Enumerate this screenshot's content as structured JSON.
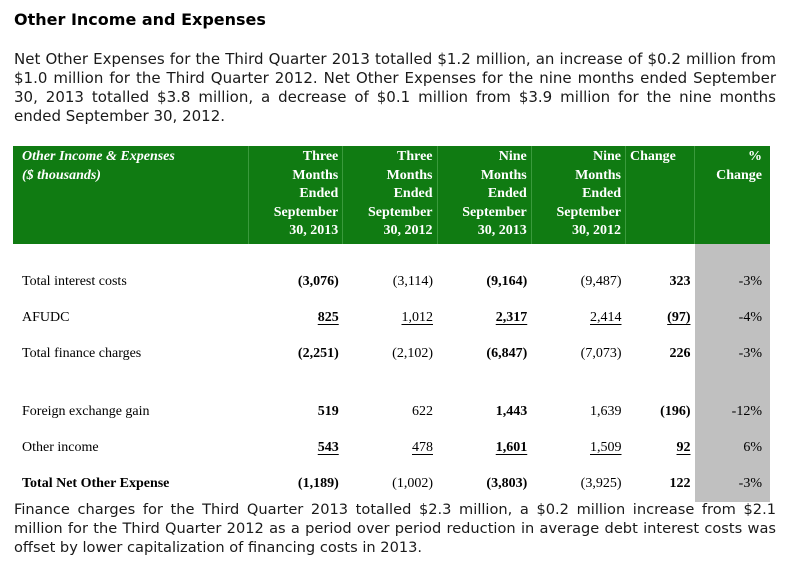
{
  "section_title": "Other Income and Expenses",
  "intro_paragraph": "Net Other Expenses for the Third Quarter 2013 totalled $1.2 million, an increase of $0.2 million from $1.0 million for the Third Quarter 2012.  Net Other Expenses for the nine months ended September 30, 2013 totalled $3.8 million, a decrease of $0.1 million from $3.9 million for the nine months ended September 30, 2012.",
  "table": {
    "header": {
      "label_line1": "Other Income & Expenses",
      "label_line2": "($ thousands)",
      "columns": [
        {
          "l1": "Three",
          "l2": "Months",
          "l3": "Ended",
          "l4": "September",
          "l5": "30, 2013"
        },
        {
          "l1": "Three",
          "l2": "Months",
          "l3": "Ended",
          "l4": "September",
          "l5": "30, 2012"
        },
        {
          "l1": "Nine",
          "l2": "Months",
          "l3": "Ended",
          "l4": "September",
          "l5": "30, 2013"
        },
        {
          "l1": "Nine",
          "l2": "Months",
          "l3": "Ended",
          "l4": "September",
          "l5": "30, 2012"
        }
      ],
      "change": "Change",
      "pct_line1": "%",
      "pct_line2": "Change"
    },
    "rows": [
      {
        "label": "Total interest costs",
        "q3_2013": "(3,076)",
        "q3_2012": "(3,114)",
        "ytd_2013": "(9,164)",
        "ytd_2012": "(9,487)",
        "change": "323",
        "pct": "-3%"
      },
      {
        "label": "AFUDC",
        "q3_2013": "825",
        "q3_2012": "1,012",
        "ytd_2013": "2,317",
        "ytd_2012": "2,414",
        "change": "(97)",
        "pct": "-4%"
      },
      {
        "label": "Total finance charges",
        "q3_2013": "(2,251)",
        "q3_2012": "(2,102)",
        "ytd_2013": "(6,847)",
        "ytd_2012": "(7,073)",
        "change": "226",
        "pct": "-3%"
      },
      {
        "label": "Foreign exchange gain",
        "q3_2013": "519",
        "q3_2012": "622",
        "ytd_2013": "1,443",
        "ytd_2012": "1,639",
        "change": "(196)",
        "pct": "-12%"
      },
      {
        "label": "Other income",
        "q3_2013": "543",
        "q3_2012": "478",
        "ytd_2013": "1,601",
        "ytd_2012": "1,509",
        "change": "92",
        "pct": "6%"
      },
      {
        "label": "Total Net Other Expense",
        "q3_2013": "(1,189)",
        "q3_2012": "(1,002)",
        "ytd_2013": "(3,803)",
        "ytd_2012": "(3,925)",
        "change": "122",
        "pct": "-3%"
      }
    ]
  },
  "closing_paragraph": "Finance charges for the Third Quarter 2013 totalled $2.3 million, a $0.2 million increase from $2.1 million for the Third Quarter 2012 as a period over period reduction in average debt interest costs was offset by lower capitalization of financing costs in 2013.",
  "colors": {
    "header_green": "#107b12",
    "pct_column_gray": "#c0c0c0"
  }
}
